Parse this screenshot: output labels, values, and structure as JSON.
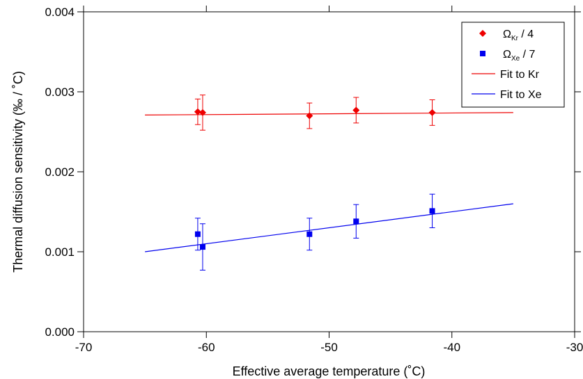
{
  "chart_data": {
    "type": "scatter",
    "title": "",
    "xlabel": "Effective average temperature (˚C)",
    "ylabel": "Thermal diffusion sensitivity (‰ / ˚C)",
    "xlim": [
      -70,
      -30
    ],
    "ylim": [
      0.0,
      0.004
    ],
    "x_ticks": [
      -70,
      -60,
      -50,
      -40,
      -30
    ],
    "x_tick_labels": [
      "-70",
      "-60",
      "-50",
      "-40",
      "-30"
    ],
    "y_ticks": [
      0.0,
      0.001,
      0.002,
      0.003,
      0.004
    ],
    "y_tick_labels": [
      "0.000",
      "0.001",
      "0.002",
      "0.003",
      "0.004"
    ],
    "grid": false,
    "legend_position": "top-right",
    "series": [
      {
        "name": "Ω_Kr / 4",
        "legend_symbol": "Ω",
        "legend_subscript": "Kr",
        "legend_suffix": " / 4",
        "marker": "diamond",
        "color": "#ee0000",
        "points": [
          {
            "x": -60.7,
            "y": 0.00275,
            "err": 0.00016
          },
          {
            "x": -60.3,
            "y": 0.00274,
            "err": 0.00022
          },
          {
            "x": -51.6,
            "y": 0.0027,
            "err": 0.00016
          },
          {
            "x": -47.8,
            "y": 0.00277,
            "err": 0.00016
          },
          {
            "x": -41.6,
            "y": 0.00274,
            "err": 0.00016
          }
        ]
      },
      {
        "name": "Ω_Xe / 7",
        "legend_symbol": "Ω",
        "legend_subscript": "Xe",
        "legend_suffix": " / 7",
        "marker": "square",
        "color": "#0000ee",
        "points": [
          {
            "x": -60.7,
            "y": 0.00122,
            "err": 0.0002
          },
          {
            "x": -60.3,
            "y": 0.00106,
            "err": 0.00029
          },
          {
            "x": -51.6,
            "y": 0.00122,
            "err": 0.0002
          },
          {
            "x": -47.8,
            "y": 0.00138,
            "err": 0.00021
          },
          {
            "x": -41.6,
            "y": 0.00151,
            "err": 0.00021
          }
        ]
      }
    ],
    "fits": [
      {
        "name": "Fit to Kr",
        "color": "#ee0000",
        "x": [
          -65,
          -35
        ],
        "y": [
          0.00271,
          0.00274
        ]
      },
      {
        "name": "Fit to Xe",
        "color": "#0000ee",
        "x": [
          -65,
          -35
        ],
        "y": [
          0.001,
          0.0016
        ]
      }
    ]
  }
}
